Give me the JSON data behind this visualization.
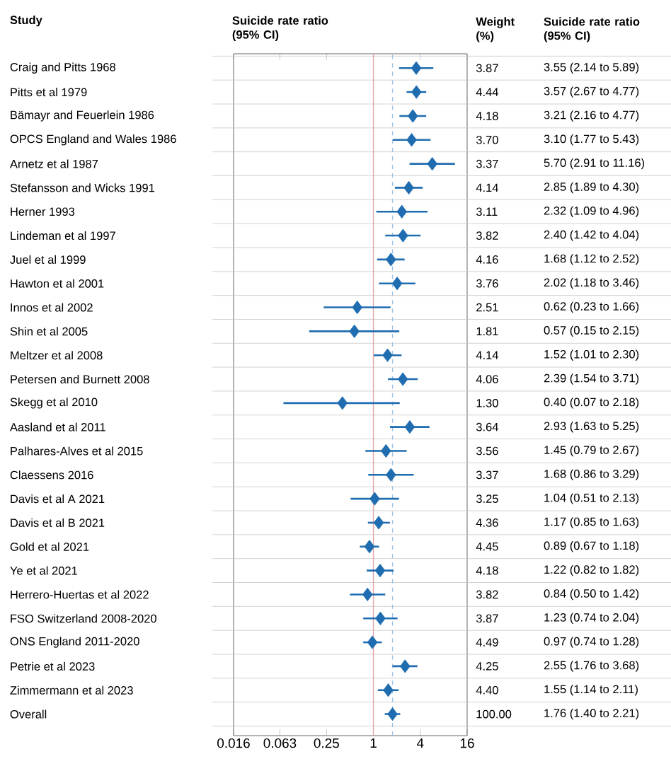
{
  "chart_data": {
    "type": "scatter",
    "orientation": "horizontal",
    "ylabel": "Study",
    "xlabel": "Suicide rate ratio (95% CI)",
    "categories": [
      "Craig and Pitts 1968",
      "Pitts et al 1979",
      "Bämayr and Feuerlein 1986",
      "OPCS England and Wales 1986",
      "Arnetz et al 1987",
      "Stefansson and Wicks 1991",
      "Herner 1993",
      "Lindeman et al 1997",
      "Juel et al 1999",
      "Hawton et al 2001",
      "Innos et al 2002",
      "Shin et al 2005",
      "Meltzer et al 2008",
      "Petersen and Burnett 2008",
      "Skegg et al 2010",
      "Aasland et al 2011",
      "Palhares-Alves et al 2015",
      "Claessens 2016",
      "Davis et al A 2021",
      "Davis et al B 2021",
      "Gold et al 2021",
      "Ye et al 2021",
      "Herrero-Huertas et al 2022",
      "FSO Switzerland 2008-2020",
      "ONS England 2011-2020",
      "Petrie et al 2023",
      "Zimmermann et al 2023",
      "Overall"
    ],
    "values": [
      3.55,
      3.57,
      3.21,
      3.1,
      5.7,
      2.85,
      2.32,
      2.4,
      1.68,
      2.02,
      0.62,
      0.57,
      1.52,
      2.39,
      0.4,
      2.93,
      1.45,
      1.68,
      1.04,
      1.17,
      0.89,
      1.22,
      0.84,
      1.23,
      0.97,
      2.55,
      1.55,
      1.76
    ],
    "errors": [
      [
        2.14,
        5.89
      ],
      [
        2.67,
        4.77
      ],
      [
        2.16,
        4.77
      ],
      [
        1.77,
        5.43
      ],
      [
        2.91,
        11.16
      ],
      [
        1.89,
        4.3
      ],
      [
        1.09,
        4.96
      ],
      [
        1.42,
        4.04
      ],
      [
        1.12,
        2.52
      ],
      [
        1.18,
        3.46
      ],
      [
        0.23,
        1.66
      ],
      [
        0.15,
        2.15
      ],
      [
        1.01,
        2.3
      ],
      [
        1.54,
        3.71
      ],
      [
        0.07,
        2.18
      ],
      [
        1.63,
        5.25
      ],
      [
        0.79,
        2.67
      ],
      [
        0.86,
        3.29
      ],
      [
        0.51,
        2.13
      ],
      [
        0.85,
        1.63
      ],
      [
        0.67,
        1.18
      ],
      [
        0.82,
        1.82
      ],
      [
        0.5,
        1.42
      ],
      [
        0.74,
        2.04
      ],
      [
        0.74,
        1.28
      ],
      [
        1.76,
        3.68
      ],
      [
        1.14,
        2.11
      ],
      [
        1.4,
        2.21
      ]
    ],
    "annotations": [
      "Weight (%)",
      "Suicide rate ratio (95% CI)",
      "3.87",
      "4.44",
      "4.18",
      "3.70",
      "3.37",
      "4.14",
      "3.11",
      "3.82",
      "4.16",
      "3.76",
      "2.51",
      "1.81",
      "4.14",
      "4.06",
      "1.30",
      "3.64",
      "3.56",
      "3.37",
      "3.25",
      "4.36",
      "4.45",
      "4.18",
      "3.82",
      "3.87",
      "4.49",
      "4.25",
      "4.40",
      "100.00",
      "3.55 (2.14 to 5.89)",
      "3.57 (2.67 to 4.77)",
      "3.21 (2.16 to 4.77)",
      "3.10 (1.77 to 5.43)",
      "5.70 (2.91 to 11.16)",
      "2.85 (1.89 to 4.30)",
      "2.32 (1.09 to 4.96)",
      "2.40 (1.42 to 4.04)",
      "1.68 (1.12 to 2.52)",
      "2.02 (1.18 to 3.46)",
      "0.62 (0.23 to 1.66)",
      "0.57 (0.15 to 2.15)",
      "1.52 (1.01 to 2.30)",
      "2.39 (1.54 to 3.71)",
      "0.40 (0.07 to 2.18)",
      "2.93 (1.63 to 5.25)",
      "1.45 (0.79 to 2.67)",
      "1.68 (0.86 to 3.29)",
      "1.04 (0.51 to 2.13)",
      "1.17 (0.85 to 1.63)",
      "0.89 (0.67 to 1.18)",
      "1.22 (0.82 to 1.82)",
      "0.84 (0.50 to 1.42)",
      "1.23 (0.74 to 2.04)",
      "0.97 (0.74 to 1.28)",
      "2.55 (1.76 to 3.68)",
      "1.55 (1.14 to 2.11)",
      "1.76 (1.40 to 2.21)"
    ],
    "color": "#1f6db0",
    "marker": "diamond",
    "log": "x",
    "grid": "y",
    "xlim": [
      0.016,
      16
    ],
    "xticks": [
      0.016,
      0.063,
      0.25,
      1,
      4,
      16
    ],
    "ref_lines": [
      {
        "axis": "x",
        "value": 1,
        "color": "#e8a3a8",
        "line_style": "solid"
      },
      {
        "axis": "x",
        "value": 1.76,
        "color": "#9cc2e4",
        "line_style": "dashed"
      }
    ]
  }
}
